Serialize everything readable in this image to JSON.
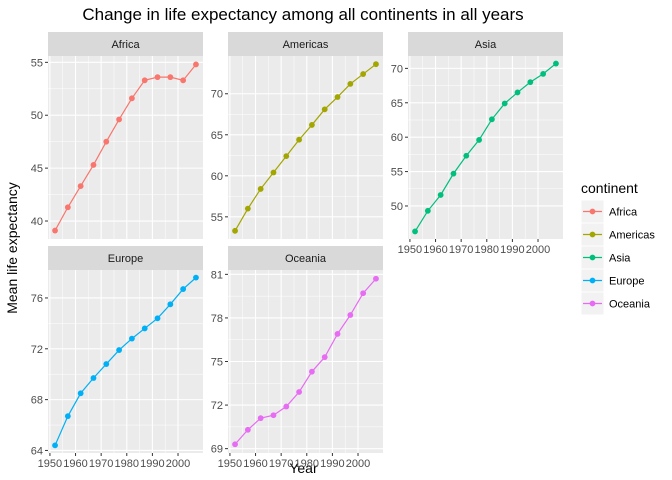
{
  "chart_data": {
    "type": "line",
    "title": "Change in life expectancy among all continents in all years",
    "xlabel": "Year",
    "ylabel": "Mean life expectancy",
    "facet_wrap_columns": 3,
    "legend": {
      "title": "continent",
      "position": "right"
    },
    "x": [
      1952,
      1957,
      1962,
      1967,
      1972,
      1977,
      1982,
      1987,
      1992,
      1997,
      2002,
      2007
    ],
    "x_ticks": [
      1950,
      1960,
      1970,
      1980,
      1990,
      2000
    ],
    "x_tick_labels": [
      "1950",
      "1960",
      "1970",
      "1980",
      "1990",
      "2000"
    ],
    "xlim": [
      1949.25,
      2009.75
    ],
    "series": [
      {
        "name": "Africa",
        "color": "#F8766D",
        "values": [
          39.1,
          41.3,
          43.3,
          45.3,
          47.5,
          49.6,
          51.6,
          53.3,
          53.6,
          53.6,
          53.3,
          54.8
        ],
        "y_ticks": [
          40,
          45,
          50,
          55
        ],
        "ylim": [
          38.3,
          55.6
        ]
      },
      {
        "name": "Americas",
        "color": "#A3A500",
        "values": [
          53.3,
          56.0,
          58.4,
          60.4,
          62.4,
          64.4,
          66.2,
          68.1,
          69.6,
          71.2,
          72.4,
          73.6
        ],
        "y_ticks": [
          55,
          60,
          65,
          70
        ],
        "ylim": [
          52.3,
          74.6
        ]
      },
      {
        "name": "Asia",
        "color": "#00BF7D",
        "values": [
          46.3,
          49.3,
          51.6,
          54.7,
          57.3,
          59.6,
          62.6,
          64.9,
          66.5,
          68.0,
          69.2,
          70.7
        ],
        "y_ticks": [
          50,
          55,
          60,
          65,
          70
        ],
        "ylim": [
          45.2,
          71.8
        ]
      },
      {
        "name": "Europe",
        "color": "#00B0F6",
        "values": [
          64.4,
          66.7,
          68.5,
          69.7,
          70.8,
          71.9,
          72.8,
          73.6,
          74.4,
          75.5,
          76.7,
          77.6
        ],
        "y_ticks": [
          64,
          68,
          72,
          76
        ],
        "y_tick_labels": [
          "64",
          "68",
          "72",
          "76"
        ],
        "ylim": [
          63.8,
          78.2
        ]
      },
      {
        "name": "Oceania",
        "color": "#E76BF3",
        "values": [
          69.3,
          70.3,
          71.1,
          71.3,
          71.9,
          72.9,
          74.3,
          75.3,
          76.9,
          78.2,
          79.7,
          80.7
        ],
        "y_ticks": [
          69,
          72,
          75,
          78,
          81
        ],
        "ylim": [
          68.7,
          81.3
        ]
      }
    ]
  }
}
